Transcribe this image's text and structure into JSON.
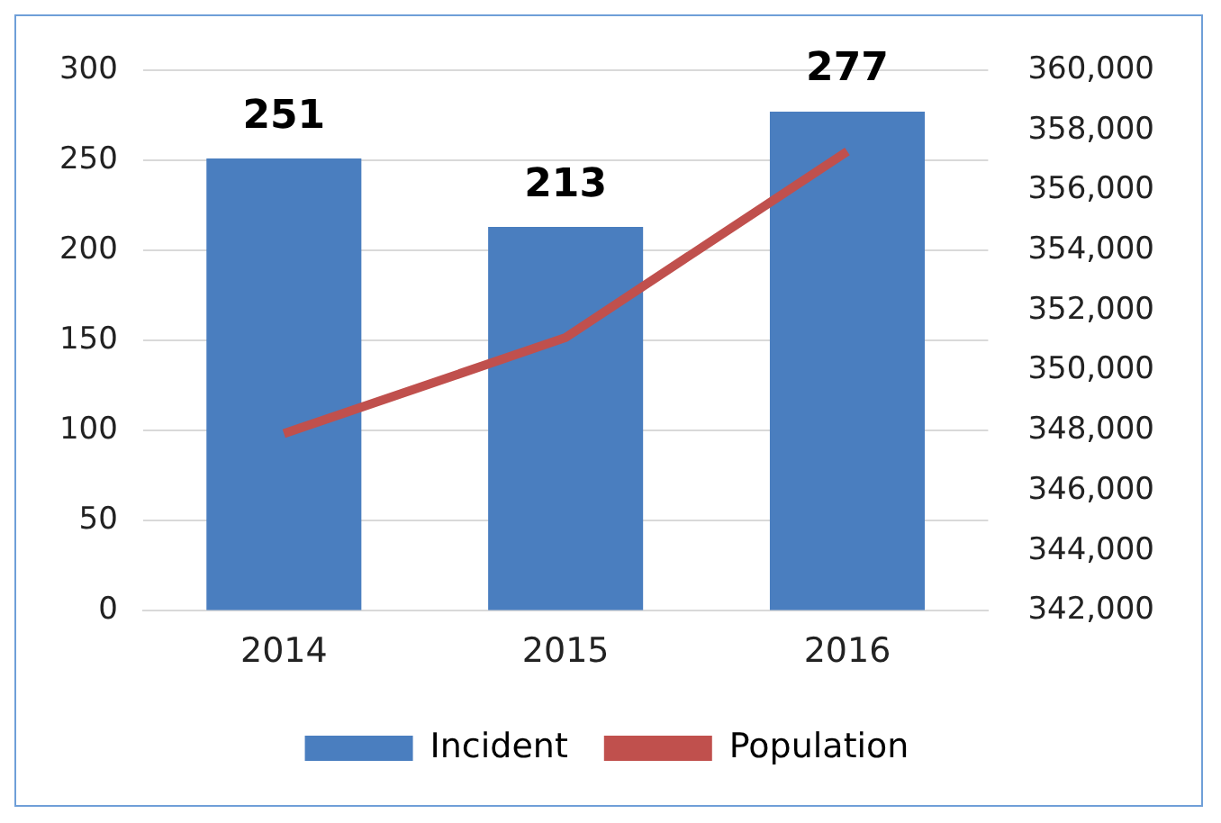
{
  "chart_data": {
    "type": "bar",
    "categories": [
      "2014",
      "2015",
      "2016"
    ],
    "series": [
      {
        "name": "Incident",
        "color": "#4a7ebf",
        "values": [
          251,
          213,
          277
        ],
        "value_labels": [
          "251",
          "213",
          "277"
        ]
      },
      {
        "name": "Population",
        "type": "line",
        "axis": "y2",
        "color": "#c0504d",
        "values": [
          347900,
          351100,
          357300
        ]
      }
    ],
    "ylim": [
      0,
      300
    ],
    "yticks": [
      0,
      50,
      100,
      150,
      200,
      250,
      300
    ],
    "y2lim": [
      342000,
      360000
    ],
    "y2ticks": [
      {
        "value": 342000,
        "label": "342,000"
      },
      {
        "value": 344000,
        "label": "344,000"
      },
      {
        "value": 346000,
        "label": "346,000"
      },
      {
        "value": 348000,
        "label": "348,000"
      },
      {
        "value": 350000,
        "label": "350,000"
      },
      {
        "value": 352000,
        "label": "352,000"
      },
      {
        "value": 354000,
        "label": "354,000"
      },
      {
        "value": 356000,
        "label": "356,000"
      },
      {
        "value": 358000,
        "label": "358,000"
      },
      {
        "value": 360000,
        "label": "360,000"
      }
    ],
    "grid": "y",
    "legend": "bottom",
    "marker": "none",
    "line_style": "solid"
  }
}
